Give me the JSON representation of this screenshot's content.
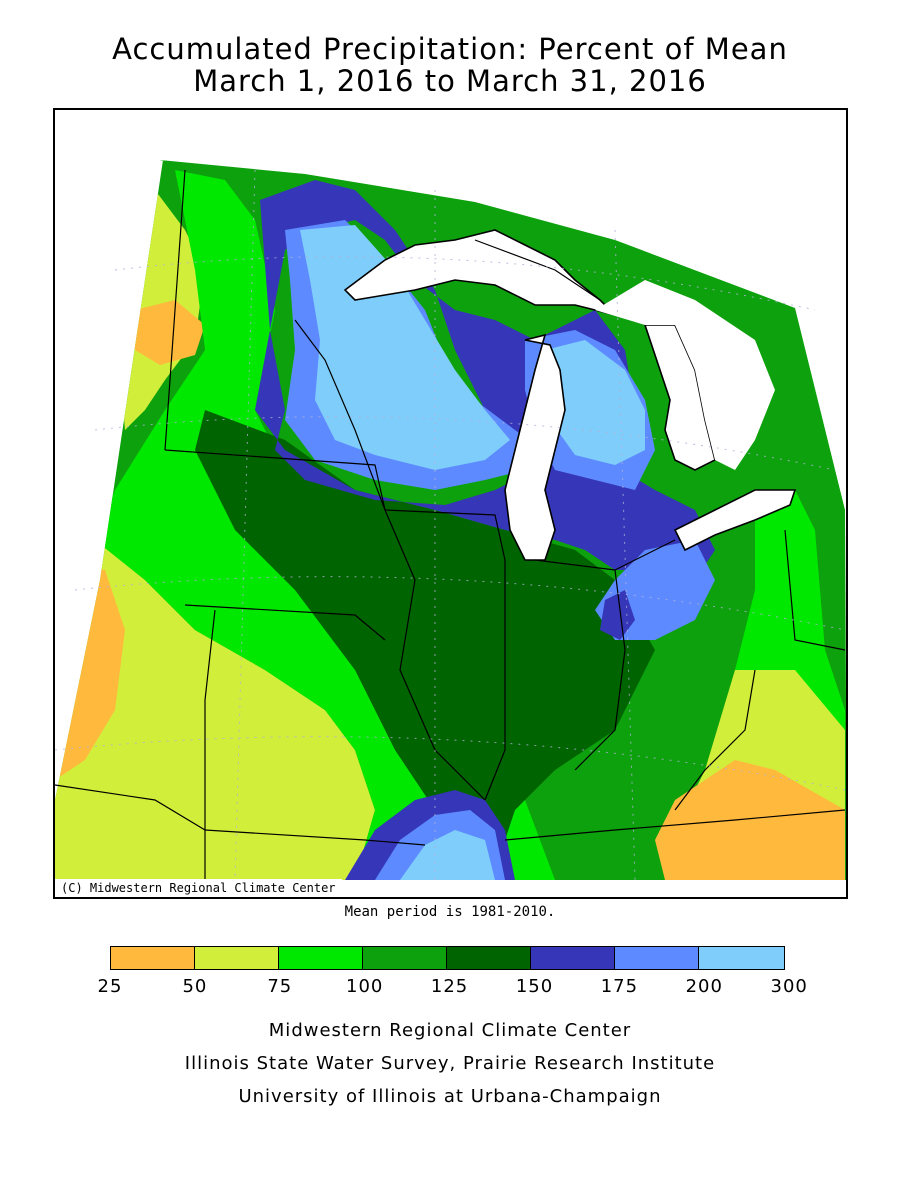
{
  "title_line1": "Accumulated Precipitation: Percent of Mean",
  "title_line2": "March 1, 2016 to March 31, 2016",
  "credit": "(C) Midwestern Regional Climate Center",
  "mean_note": "Mean period is 1981-2010.",
  "legend": {
    "bins": [
      {
        "color": "#ffb93c"
      },
      {
        "color": "#d1ef3a"
      },
      {
        "color": "#00e800"
      },
      {
        "color": "#0da10d"
      },
      {
        "color": "#006400"
      },
      {
        "color": "#3636b8"
      },
      {
        "color": "#5d8bff"
      },
      {
        "color": "#7fcdfb"
      }
    ],
    "ticks": [
      "25",
      "50",
      "75",
      "100",
      "125",
      "150",
      "175",
      "200",
      "300"
    ]
  },
  "footer": {
    "line1": "Midwestern Regional Climate Center",
    "line2": "Illinois State Water Survey, Prairie Research Institute",
    "line3": "University of Illinois at Urbana-Champaign"
  },
  "colors": {
    "lake": "#ffffff",
    "border": "#000000",
    "grid": "#b0b0d8"
  }
}
